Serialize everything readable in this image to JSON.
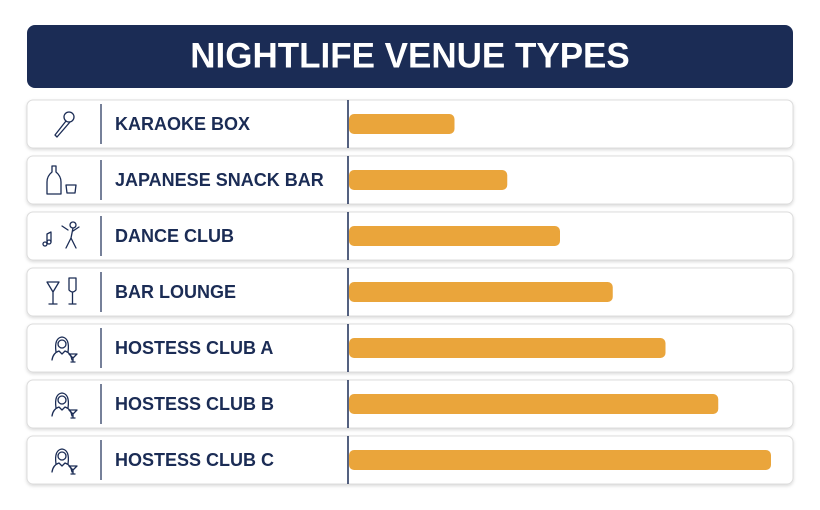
{
  "chart_data": {
    "type": "bar",
    "orientation": "horizontal",
    "title": "NIGHTLIFE VENUE TYPES",
    "categories": [
      "KARAOKE BOX",
      "JAPANESE SNACK BAR",
      "DANCE CLUB",
      "BAR LOUNGE",
      "HOSTESS CLUB A",
      "HOSTESS CLUB B",
      "HOSTESS CLUB C"
    ],
    "values": [
      25,
      37.5,
      50,
      62.5,
      75,
      87.5,
      100
    ],
    "color": "#eaa53b",
    "xlim": [
      0,
      100
    ]
  }
}
